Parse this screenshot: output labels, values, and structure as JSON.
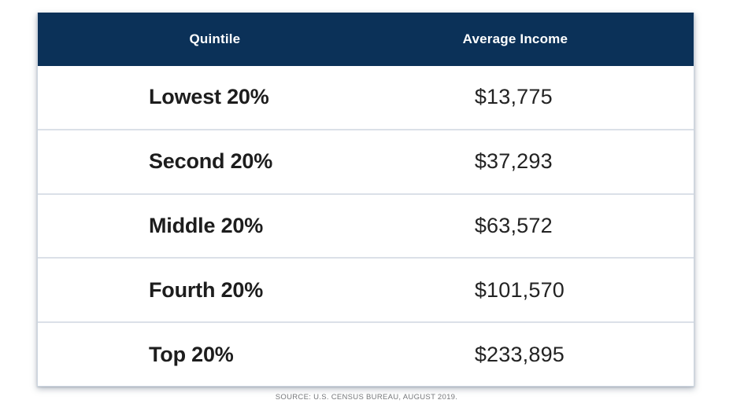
{
  "chart_data": {
    "type": "table",
    "title": "",
    "columns": [
      "Quintile",
      "Average Income"
    ],
    "rows": [
      [
        "Lowest 20%",
        "$13,775"
      ],
      [
        "Second 20%",
        "$37,293"
      ],
      [
        "Middle 20%",
        "$63,572"
      ],
      [
        "Fourth 20%",
        "$101,570"
      ],
      [
        "Top 20%",
        "$233,895"
      ]
    ],
    "values_numeric": [
      13775,
      37293,
      63572,
      101570,
      233895
    ],
    "source": "SOURCE: U.S. CENSUS BUREAU, AUGUST 2019."
  },
  "source_note": "SOURCE: U.S. CENSUS BUREAU, AUGUST 2019.",
  "colors": {
    "header_bg": "#0b3158",
    "header_text": "#ffffff",
    "row_text": "#1d1d1d",
    "divider": "#dbe0e8",
    "source_text": "#76787b",
    "card_border": "#ccd5df"
  }
}
